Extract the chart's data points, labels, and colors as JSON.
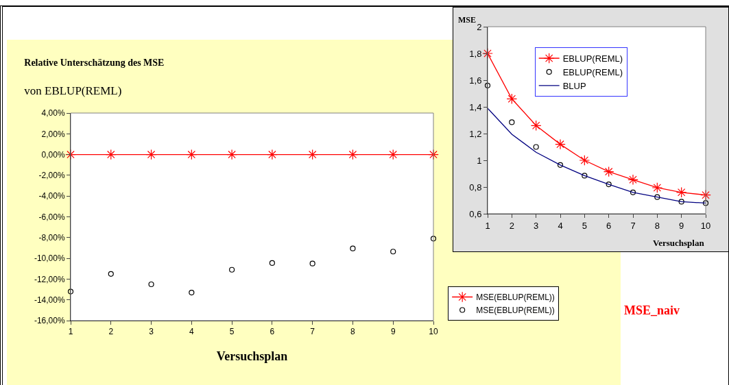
{
  "chart_data": [
    {
      "type": "line",
      "title": "Relative Unterschätzung des MSE",
      "subtitle": "von EBLUP(REML)",
      "xlabel": "Versuchsplan",
      "x": [
        1,
        2,
        3,
        4,
        5,
        6,
        7,
        8,
        9,
        10
      ],
      "series": [
        {
          "name": "MSE(EBLUP(REML))",
          "color": "#ff0000",
          "type": "line",
          "marker": "cross",
          "values": [
            0,
            0,
            0,
            0,
            0,
            0,
            0,
            0,
            0,
            0
          ]
        },
        {
          "name": "MSE(EBLUP(REML))",
          "color": "#000000",
          "type": "scatter",
          "marker": "circle",
          "values": [
            -13.2,
            -11.5,
            -12.5,
            -13.3,
            -11.1,
            -10.45,
            -10.5,
            -9.05,
            -9.35,
            -8.1
          ]
        }
      ],
      "xlim": [
        1,
        10
      ],
      "xticks": [
        1,
        2,
        3,
        4,
        5,
        6,
        7,
        8,
        9,
        10
      ],
      "ylim": [
        -16,
        4
      ],
      "yticks": [
        {
          "value": -16,
          "label": "-16,00%"
        },
        {
          "value": -14,
          "label": "-14,00%"
        },
        {
          "value": -12,
          "label": "-12,00%"
        },
        {
          "value": -10,
          "label": "-10,00%"
        },
        {
          "value": -8,
          "label": "-8,00%"
        },
        {
          "value": -6,
          "label": "-6,00%"
        },
        {
          "value": -4,
          "label": "-4,00%"
        },
        {
          "value": -2,
          "label": "-2,00%"
        },
        {
          "value": 0,
          "label": "0,00%"
        },
        {
          "value": 2,
          "label": "2,00%"
        },
        {
          "value": 4,
          "label": "4,00%"
        }
      ],
      "grid": false,
      "legend": "bottom right",
      "annotations": [
        "MSE_naiv"
      ]
    },
    {
      "type": "line",
      "ylabel": "MSE",
      "xlabel": "Versuchsplan",
      "x": [
        1,
        2,
        3,
        4,
        5,
        6,
        7,
        8,
        9,
        10
      ],
      "series": [
        {
          "name": "EBLUP(REML)",
          "color": "#ff0000",
          "type": "line",
          "marker": "cross",
          "values": [
            1.8,
            1.46,
            1.26,
            1.12,
            1.0,
            0.915,
            0.855,
            0.795,
            0.76,
            0.74
          ]
        },
        {
          "name": "EBLUP(REML)",
          "color": "#000000",
          "type": "scatter",
          "marker": "circle",
          "values": [
            1.56,
            1.285,
            1.1,
            0.965,
            0.885,
            0.82,
            0.76,
            0.725,
            0.69,
            0.68
          ]
        },
        {
          "name": "BLUP",
          "color": "#000080",
          "type": "line",
          "marker": "none",
          "values": [
            1.39,
            1.195,
            1.06,
            0.965,
            0.885,
            0.82,
            0.76,
            0.725,
            0.69,
            0.68
          ]
        }
      ],
      "xlim": [
        1,
        10
      ],
      "xticks": [
        1,
        2,
        3,
        4,
        5,
        6,
        7,
        8,
        9,
        10
      ],
      "ylim": [
        0.6,
        2
      ],
      "yticks": [
        {
          "value": 0.6,
          "label": "0,6"
        },
        {
          "value": 0.8,
          "label": "0,8"
        },
        1,
        {
          "value": 1.2,
          "label": "1,2"
        },
        {
          "value": 1.4,
          "label": "1,4"
        },
        {
          "value": 1.6,
          "label": "1,6"
        },
        {
          "value": 1.8,
          "label": "1,8"
        },
        2
      ],
      "grid": false,
      "legend": "top"
    }
  ]
}
